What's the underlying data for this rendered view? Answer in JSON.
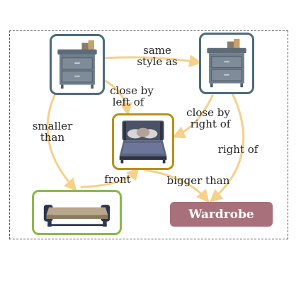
{
  "colors": {
    "edge": "#f7d08a",
    "nightstand_border": "#4a6b7c",
    "bed_border": "#b8901a",
    "bench_border": "#8ab84a",
    "wardrobe_fill": "#a8707a"
  },
  "nodes": {
    "nightstand_left": {
      "icon": "nightstand-icon"
    },
    "nightstand_right": {
      "icon": "nightstand-icon"
    },
    "bed": {
      "icon": "bed-icon"
    },
    "bench": {
      "icon": "bench-icon"
    },
    "wardrobe": {
      "label": "Wardrobe"
    }
  },
  "edges": {
    "same_style": {
      "line1": "same",
      "line2": "style as"
    },
    "close_left": {
      "line1": "close by",
      "line2": "left of"
    },
    "close_right": {
      "line1": "close by",
      "line2": "right of"
    },
    "right_of": {
      "label": "right of"
    },
    "smaller": {
      "line1": "smaller",
      "line2": "than"
    },
    "front": {
      "label": "front"
    },
    "bigger": {
      "label": "bigger than"
    }
  }
}
